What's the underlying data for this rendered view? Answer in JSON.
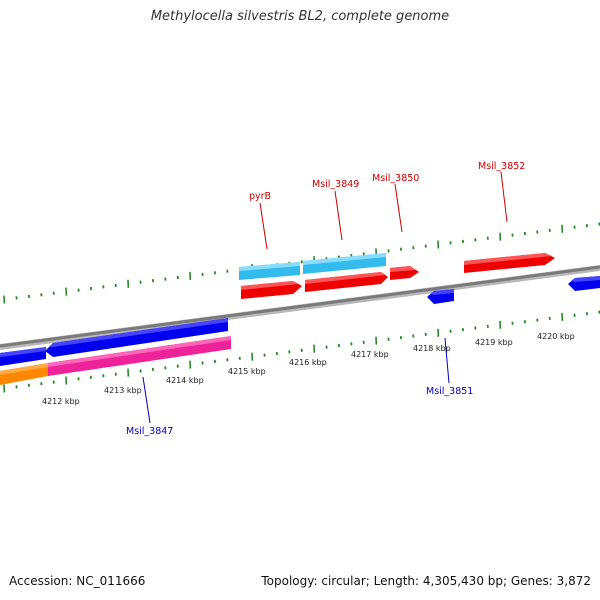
{
  "title": "Methylocella silvestris BL2, complete genome",
  "footer": {
    "accession": "Accession: NC_011666",
    "summary": "Topology: circular; Length: 4,305,430 bp; Genes: 3,872"
  },
  "colors": {
    "backbone": "#8a8a8a",
    "tick": "#2a8a2a",
    "forward_label": "#cc0000",
    "reverse_label": "#0000bb",
    "red_feature": "#ee0000",
    "cyan_feature": "#33bbee",
    "blue_feature": "#0000ee",
    "pink_feature": "#ee2299",
    "orange_feature": "#ff8800"
  },
  "tick_labels": [
    "4212 kbp",
    "4213 kbp",
    "4214 kbp",
    "4215 kbp",
    "4216 kbp",
    "4217 kbp",
    "4218 kbp",
    "4219 kbp",
    "4220 kbp"
  ],
  "gene_labels": {
    "forward": [
      "pyrB",
      "Msil_3849",
      "Msil_3850",
      "Msil_3852"
    ],
    "reverse": [
      "Msil_3847",
      "Msil_3851"
    ]
  }
}
